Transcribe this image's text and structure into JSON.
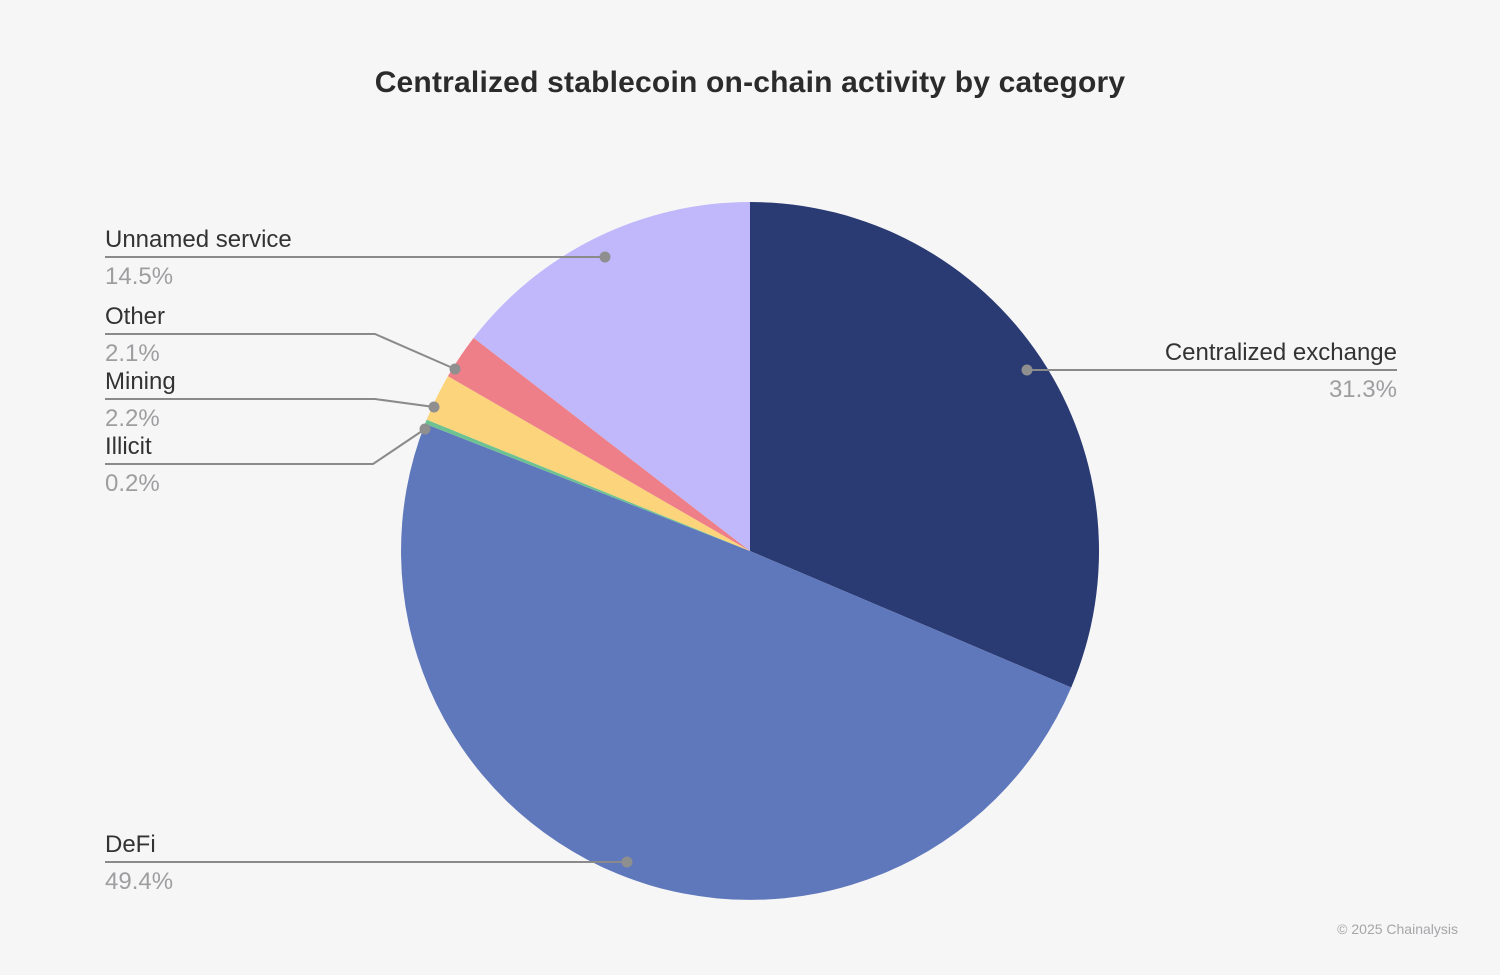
{
  "title": "Centralized stablecoin on-chain activity by category",
  "footer": "© 2025 Chainalysis",
  "colors": {
    "background": "#f6f6f7",
    "title_text": "#2b2b2b",
    "label_text": "#333333",
    "pct_text": "#9e9ea0",
    "leader_line": "#8a8a8a",
    "leader_dot": "#8f8f8f",
    "footer_text": "#a6a6a9"
  },
  "chart_data": {
    "type": "pie",
    "title": "Centralized stablecoin on-chain activity by category",
    "start_angle": "12 o'clock",
    "direction": "clockwise",
    "legend_position": "callout labels with leader lines",
    "slices": [
      {
        "label": "Centralized exchange",
        "value_pct": 31.3,
        "display": "31.3%",
        "color": "#2a3a73"
      },
      {
        "label": "DeFi",
        "value_pct": 49.4,
        "display": "49.4%",
        "color": "#5f78bb"
      },
      {
        "label": "Illicit",
        "value_pct": 0.2,
        "display": "0.2%",
        "color": "#6ec291"
      },
      {
        "label": "Mining",
        "value_pct": 2.2,
        "display": "2.2%",
        "color": "#fcd47c"
      },
      {
        "label": "Other",
        "value_pct": 2.1,
        "display": "2.1%",
        "color": "#ee7f88"
      },
      {
        "label": "Unnamed service",
        "value_pct": 14.5,
        "display": "14.5%",
        "color": "#c0b8fb"
      }
    ]
  }
}
